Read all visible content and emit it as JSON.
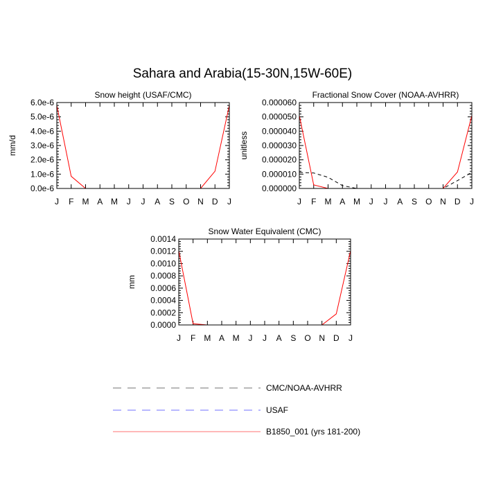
{
  "title": "Sahara and Arabia(15-30N,15W-60E)",
  "colors": {
    "obs": "#000000",
    "usaf": "#0000ff",
    "model": "#ff0000"
  },
  "legend": [
    {
      "label": "CMC/NOAA-AVHRR",
      "color": "#000000",
      "dash": "dashed"
    },
    {
      "label": "USAF",
      "color": "#0000ff",
      "dash": "dashed"
    },
    {
      "label": "B1850_001 (yrs 181-200)",
      "color": "#ff0000",
      "dash": "solid"
    }
  ],
  "chart_data": [
    {
      "type": "line",
      "title": "Snow height (USAF/CMC)",
      "ylabel": "mm/d",
      "ylim": [
        0,
        6e-06
      ],
      "yticks": [
        "0.0e-6",
        "1.0e-6",
        "2.0e-6",
        "3.0e-6",
        "4.0e-6",
        "5.0e-6",
        "6.0e-6"
      ],
      "categories": [
        "J",
        "F",
        "M",
        "A",
        "M",
        "J",
        "J",
        "A",
        "S",
        "O",
        "N",
        "D",
        "J"
      ],
      "series": [
        {
          "name": "CMC/NOAA-AVHRR",
          "style": "obs",
          "values": [
            0,
            0,
            0,
            0,
            0,
            0,
            0,
            0,
            0,
            0,
            0,
            0,
            0
          ]
        },
        {
          "name": "USAF",
          "style": "usaf",
          "values": [
            0,
            0,
            0,
            0,
            0,
            0,
            0,
            0,
            0,
            0,
            0,
            0,
            0
          ]
        },
        {
          "name": "B1850_001 (yrs 181-200)",
          "style": "model",
          "values": [
            5.8e-06,
            8.5e-07,
            0,
            0,
            0,
            0,
            0,
            0,
            0,
            0,
            0,
            1.2e-06,
            5.8e-06
          ]
        }
      ]
    },
    {
      "type": "line",
      "title": "Fractional Snow Cover (NOAA-AVHRR)",
      "ylabel": "unitless",
      "ylim": [
        0,
        6e-05
      ],
      "yticks": [
        "0.000000",
        "0.000010",
        "0.000020",
        "0.000030",
        "0.000040",
        "0.000050",
        "0.000060"
      ],
      "categories": [
        "J",
        "F",
        "M",
        "A",
        "M",
        "J",
        "J",
        "A",
        "S",
        "O",
        "N",
        "D",
        "J"
      ],
      "series": [
        {
          "name": "CMC/NOAA-AVHRR",
          "style": "obs",
          "values": [
            1.12e-05,
            1.08e-05,
            7.8e-06,
            2e-06,
            0,
            0,
            0,
            0,
            0,
            0,
            0,
            5.5e-06,
            1.12e-05
          ]
        },
        {
          "name": "B1850_001 (yrs 181-200)",
          "style": "model",
          "values": [
            5.1e-05,
            2.5e-06,
            0,
            0,
            0,
            0,
            0,
            0,
            0,
            0,
            0,
            1.15e-05,
            5.1e-05
          ]
        }
      ]
    },
    {
      "type": "line",
      "title": "Snow Water Equivalent (CMC)",
      "ylabel": "mm",
      "ylim": [
        0,
        0.0014
      ],
      "yticks": [
        "0.0000",
        "0.0002",
        "0.0004",
        "0.0006",
        "0.0008",
        "0.0010",
        "0.0012",
        "0.0014"
      ],
      "categories": [
        "J",
        "F",
        "M",
        "A",
        "M",
        "J",
        "J",
        "A",
        "S",
        "O",
        "N",
        "D",
        "J"
      ],
      "series": [
        {
          "name": "CMC/NOAA-AVHRR",
          "style": "obs",
          "values": [
            0,
            0,
            0,
            0,
            0,
            0,
            0,
            0,
            0,
            0,
            0,
            0,
            0
          ]
        },
        {
          "name": "B1850_001 (yrs 181-200)",
          "style": "model",
          "values": [
            0.00121,
            2e-05,
            0,
            0,
            0,
            0,
            0,
            0,
            0,
            0,
            0,
            0.00018,
            0.00121
          ]
        }
      ]
    }
  ]
}
